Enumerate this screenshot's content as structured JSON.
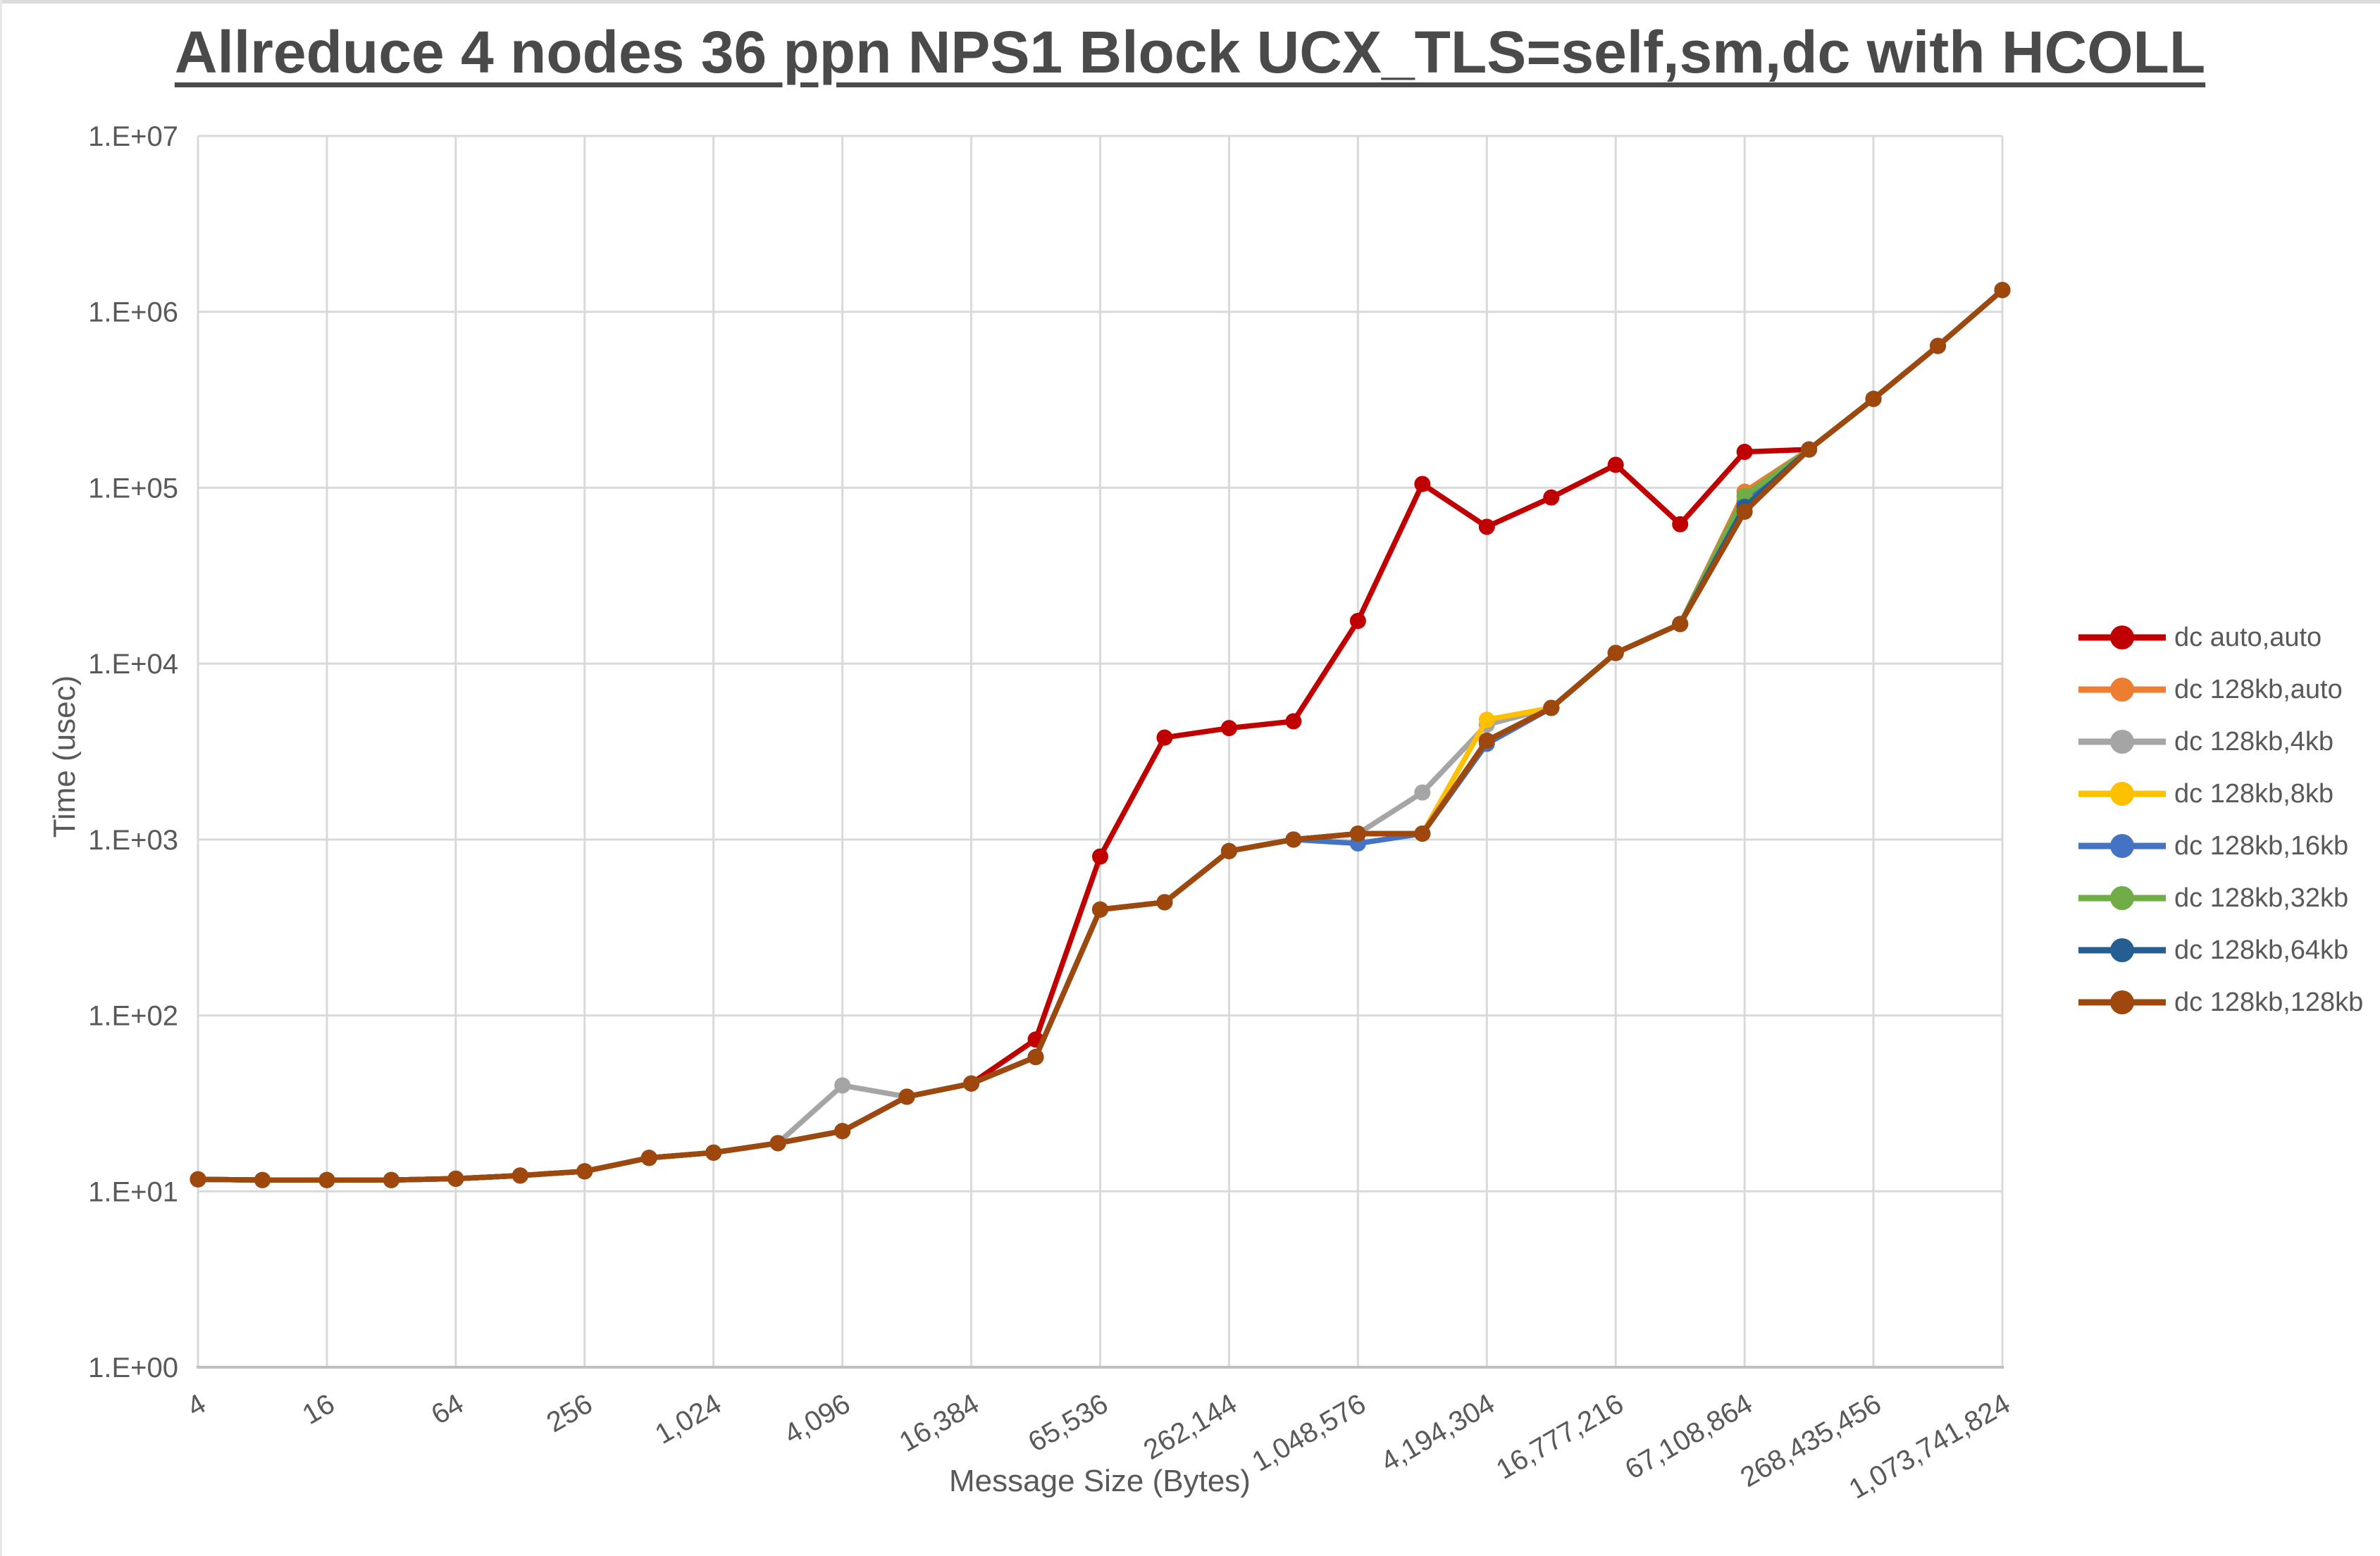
{
  "window": {
    "top_border_color": "#dcdcdc"
  },
  "chart_data": {
    "type": "line",
    "title": "Allreduce 4 nodes 36 ppn NPS1 Block UCX_TLS=self,sm,dc with HCOLL",
    "xlabel": "Message Size (Bytes)",
    "ylabel": "Time (usec)",
    "grid": true,
    "legend_position": "right",
    "colors": {
      "gridline": "#D9D9D9",
      "axis_line": "#BFBFBF",
      "tick_text": "#595959",
      "title_text": "#4a4a4a"
    },
    "y_axis": {
      "scale": "log10",
      "min": 1,
      "max": 10000000,
      "tick_labels": [
        "1.E+00",
        "1.E+01",
        "1.E+02",
        "1.E+03",
        "1.E+04",
        "1.E+05",
        "1.E+06",
        "1.E+07"
      ]
    },
    "x_axis": {
      "scale": "log2-categorical",
      "label_rotation_deg": -30,
      "tick_every_n_points": 2,
      "tick_labels": [
        "4",
        "16",
        "64",
        "256",
        "1,024",
        "4,096",
        "16,384",
        "65,536",
        "262,144",
        "1,048,576",
        "4,194,304",
        "16,777,216",
        "67,108,864",
        "268,435,456",
        "1,073,741,824"
      ]
    },
    "categories": [
      4,
      8,
      16,
      32,
      64,
      128,
      256,
      512,
      1024,
      2048,
      4096,
      8192,
      16384,
      32768,
      65536,
      131072,
      262144,
      524288,
      1048576,
      2097152,
      4194304,
      8388608,
      16777216,
      33554432,
      67108864,
      134217728,
      268435456,
      536870912,
      1073741824
    ],
    "series": [
      {
        "name": "dc auto,auto",
        "color": "#C00000",
        "values": [
          11.7,
          11.6,
          11.6,
          11.6,
          11.8,
          12.3,
          13.0,
          15.5,
          16.6,
          18.8,
          22.0,
          34.5,
          41,
          73,
          800,
          3800,
          4300,
          4700,
          17500,
          105000,
          60000,
          88000,
          135000,
          62000,
          160000,
          165000,
          320000,
          640000,
          1330000
        ]
      },
      {
        "name": "dc 128kb,auto",
        "color": "#ED7D31",
        "values": [
          11.7,
          11.6,
          11.6,
          11.6,
          11.8,
          12.3,
          13.0,
          15.5,
          16.6,
          18.8,
          22.0,
          34.5,
          41,
          58,
          400,
          440,
          860,
          1000,
          1080,
          1080,
          3650,
          5600,
          11500,
          16800,
          95000,
          165000,
          320000,
          640000,
          1330000
        ]
      },
      {
        "name": "dc 128kb,4kb",
        "color": "#A5A5A5",
        "values": [
          11.7,
          11.6,
          11.6,
          11.6,
          11.8,
          12.3,
          13.0,
          15.5,
          16.6,
          18.8,
          40,
          34.5,
          41,
          58,
          400,
          440,
          860,
          1000,
          1080,
          1850,
          4500,
          5600,
          11500,
          16800,
          85000,
          165000,
          320000,
          640000,
          1330000
        ]
      },
      {
        "name": "dc 128kb,8kb",
        "color": "#FFC000",
        "values": [
          11.7,
          11.6,
          11.6,
          11.6,
          11.8,
          12.3,
          13.0,
          15.5,
          16.6,
          18.8,
          22.0,
          34.5,
          41,
          58,
          400,
          440,
          860,
          1000,
          1080,
          1080,
          4800,
          5600,
          11500,
          16800,
          87000,
          165000,
          320000,
          640000,
          1330000
        ]
      },
      {
        "name": "dc 128kb,16kb",
        "color": "#4472C4",
        "values": [
          11.7,
          11.6,
          11.6,
          11.6,
          11.8,
          12.3,
          13.0,
          15.5,
          16.6,
          18.8,
          22.0,
          34.5,
          41,
          58,
          400,
          440,
          860,
          1000,
          950,
          1080,
          3500,
          5600,
          11500,
          16800,
          82000,
          165000,
          320000,
          640000,
          1330000
        ]
      },
      {
        "name": "dc 128kb,32kb",
        "color": "#70AD47",
        "values": [
          11.7,
          11.6,
          11.6,
          11.6,
          11.8,
          12.3,
          13.0,
          15.5,
          16.6,
          18.8,
          22.0,
          34.5,
          41,
          58,
          400,
          440,
          860,
          1000,
          1080,
          1080,
          3650,
          5600,
          11500,
          16800,
          90000,
          165000,
          320000,
          640000,
          1330000
        ]
      },
      {
        "name": "dc 128kb,64kb",
        "color": "#255E91",
        "values": [
          11.7,
          11.6,
          11.6,
          11.6,
          11.8,
          12.3,
          13.0,
          15.5,
          16.6,
          18.8,
          22.0,
          34.5,
          41,
          58,
          400,
          440,
          860,
          1000,
          1080,
          1080,
          3650,
          5600,
          11500,
          16800,
          78000,
          165000,
          320000,
          640000,
          1330000
        ]
      },
      {
        "name": "dc 128kb,128kb",
        "color": "#9E480E",
        "values": [
          11.7,
          11.6,
          11.6,
          11.6,
          11.8,
          12.3,
          13.0,
          15.5,
          16.6,
          18.8,
          22.0,
          34.5,
          41,
          58,
          400,
          440,
          860,
          1000,
          1080,
          1080,
          3650,
          5600,
          11500,
          16800,
          73000,
          165000,
          320000,
          640000,
          1330000
        ]
      }
    ]
  }
}
